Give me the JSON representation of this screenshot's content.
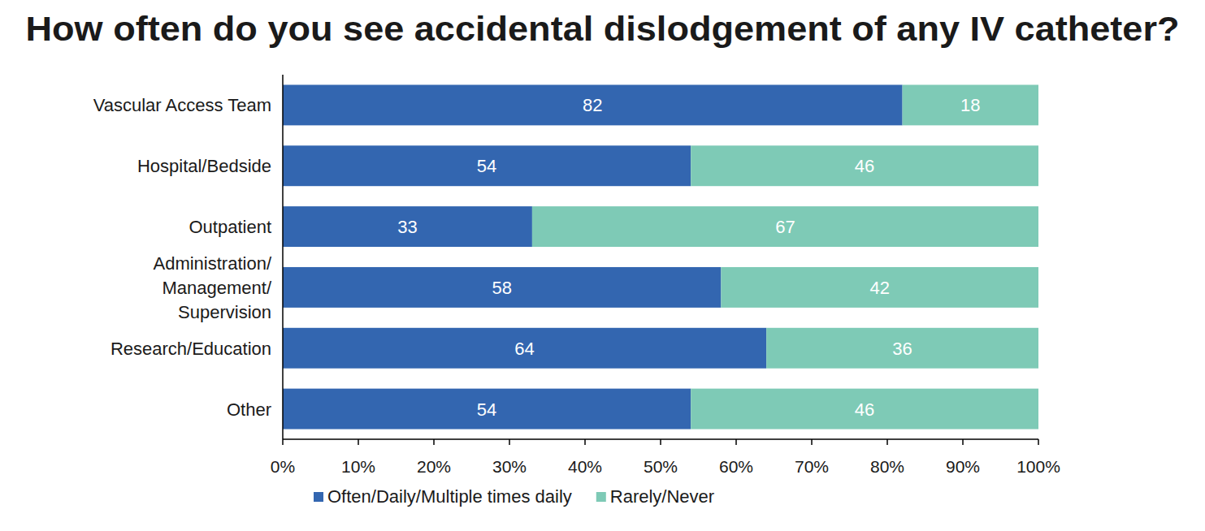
{
  "chart_data": {
    "type": "bar",
    "orientation": "horizontal",
    "stacked": true,
    "data_labels": true,
    "title": "How often do you see accidental dislodgement of any IV catheter?",
    "categories": [
      "Vascular Access Team",
      "Hospital/Bedside",
      "Outpatient",
      "Administration/ Management/ Supervision",
      "Research/Education",
      "Other"
    ],
    "series": [
      {
        "name": "Often/Daily/Multiple times daily",
        "color": "#3366b0",
        "values": [
          82,
          54,
          33,
          58,
          64,
          54
        ]
      },
      {
        "name": "Rarely/Never",
        "color": "#7ecab6",
        "values": [
          18,
          46,
          67,
          42,
          36,
          46
        ]
      }
    ],
    "xlim": [
      0,
      100
    ],
    "xticks": [
      {
        "value": 0,
        "label": "0%"
      },
      {
        "value": 10,
        "label": "10%"
      },
      {
        "value": 20,
        "label": "20%"
      },
      {
        "value": 30,
        "label": "30%"
      },
      {
        "value": 40,
        "label": "40%"
      },
      {
        "value": 50,
        "label": "50%"
      },
      {
        "value": 60,
        "label": "60%"
      },
      {
        "value": 70,
        "label": "70%"
      },
      {
        "value": 80,
        "label": "80%"
      },
      {
        "value": 90,
        "label": "90%"
      },
      {
        "value": 100,
        "label": "100%"
      }
    ],
    "grid": false,
    "legend": "bottom"
  }
}
